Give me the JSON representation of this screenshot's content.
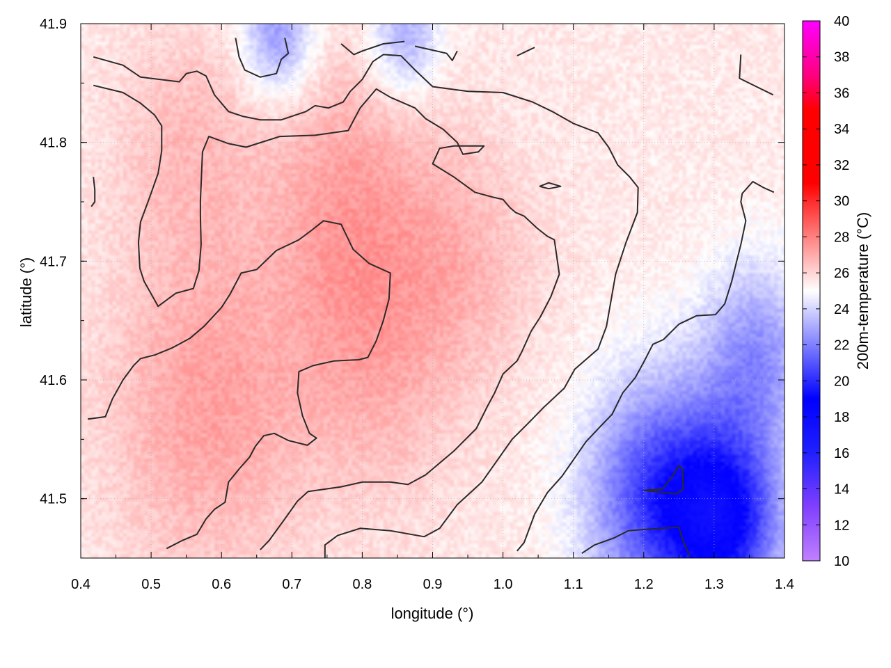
{
  "chart_data": {
    "type": "heatmap",
    "title": "",
    "xlabel": "longitude (°)",
    "ylabel": "latitude (°)",
    "colorbar_label": "200m-temperature (°C)",
    "xlim": [
      0.4,
      1.4
    ],
    "ylim": [
      41.45,
      41.9
    ],
    "x_ticks": [
      0.4,
      0.5,
      0.6,
      0.7,
      0.8,
      0.9,
      1.0,
      1.1,
      1.2,
      1.3,
      1.4
    ],
    "x_tick_labels": [
      "0.4",
      "0.5",
      "0.6",
      "0.7",
      "0.8",
      "0.9",
      "1.0",
      "1.1",
      "1.2",
      "1.3",
      "1.4"
    ],
    "y_ticks": [
      41.5,
      41.6,
      41.7,
      41.8,
      41.9
    ],
    "y_tick_labels": [
      "41.5",
      "41.6",
      "41.7",
      "41.8",
      "41.9"
    ],
    "colorbar_ticks": [
      10,
      12,
      14,
      16,
      18,
      20,
      22,
      24,
      26,
      28,
      30,
      32,
      34,
      36,
      38,
      40
    ],
    "colorbar_tick_labels": [
      "10",
      "12",
      "14",
      "16",
      "18",
      "20",
      "22",
      "24",
      "26",
      "28",
      "30",
      "32",
      "34",
      "36",
      "38",
      "40"
    ],
    "value_range": [
      10,
      40
    ],
    "grid": true,
    "colormap": [
      {
        "value": 10,
        "color": "#c080ff"
      },
      {
        "value": 13,
        "color": "#8040ff"
      },
      {
        "value": 16,
        "color": "#2020ff"
      },
      {
        "value": 19,
        "color": "#0000ff"
      },
      {
        "value": 22,
        "color": "#8080ff"
      },
      {
        "value": 25,
        "color": "#ffffff"
      },
      {
        "value": 28,
        "color": "#ff8080"
      },
      {
        "value": 31,
        "color": "#ff0000"
      },
      {
        "value": 35,
        "color": "#ff0000"
      },
      {
        "value": 37,
        "color": "#ff0080"
      },
      {
        "value": 40,
        "color": "#ff00ff"
      }
    ],
    "field": {
      "description_free": true,
      "base_value": 25.5,
      "hot_centers": [
        {
          "lon": 0.58,
          "lat": 41.58,
          "value": 27.2,
          "spread": 0.14
        },
        {
          "lon": 0.78,
          "lat": 41.76,
          "value": 27.0,
          "spread": 0.12
        },
        {
          "lon": 0.82,
          "lat": 41.62,
          "value": 26.8,
          "spread": 0.12
        },
        {
          "lon": 0.55,
          "lat": 41.8,
          "value": 26.5,
          "spread": 0.1
        },
        {
          "lon": 0.95,
          "lat": 41.7,
          "value": 26.5,
          "spread": 0.1
        }
      ],
      "cold_centers": [
        {
          "lon": 1.22,
          "lat": 41.5,
          "value": 20.5,
          "spread": 0.1
        },
        {
          "lon": 1.32,
          "lat": 41.48,
          "value": 20.0,
          "spread": 0.08
        },
        {
          "lon": 1.36,
          "lat": 41.62,
          "value": 22.5,
          "spread": 0.08
        },
        {
          "lon": 0.68,
          "lat": 41.89,
          "value": 22.5,
          "spread": 0.05
        },
        {
          "lon": 0.86,
          "lat": 41.89,
          "value": 23.0,
          "spread": 0.05
        }
      ]
    },
    "contours": [
      [
        [
          0.418,
          41.872
        ],
        [
          0.46,
          41.865
        ],
        [
          0.485,
          41.855
        ],
        [
          0.54,
          41.851
        ],
        [
          0.55,
          41.858
        ],
        [
          0.565,
          41.86
        ],
        [
          0.578,
          41.856
        ],
        [
          0.59,
          41.84
        ],
        [
          0.61,
          41.826
        ],
        [
          0.63,
          41.822
        ],
        [
          0.655,
          41.819
        ],
        [
          0.685,
          41.819
        ],
        [
          0.72,
          41.826
        ],
        [
          0.733,
          41.831
        ],
        [
          0.752,
          41.829
        ],
        [
          0.773,
          41.834
        ],
        [
          0.783,
          41.843
        ],
        [
          0.8,
          41.853
        ],
        [
          0.815,
          41.868
        ],
        [
          0.83,
          41.874
        ],
        [
          0.855,
          41.873
        ],
        [
          0.875,
          41.861
        ],
        [
          0.9,
          41.847
        ],
        [
          0.95,
          41.843
        ],
        [
          1.0,
          41.842
        ],
        [
          1.042,
          41.834
        ],
        [
          1.07,
          41.826
        ],
        [
          1.1,
          41.816
        ],
        [
          1.135,
          41.808
        ],
        [
          1.15,
          41.796
        ],
        [
          1.163,
          41.781
        ],
        [
          1.18,
          41.771
        ],
        [
          1.192,
          41.762
        ],
        [
          1.191,
          41.741
        ],
        [
          1.175,
          41.716
        ],
        [
          1.16,
          41.689
        ],
        [
          1.147,
          41.645
        ],
        [
          1.135,
          41.626
        ],
        [
          1.102,
          41.609
        ],
        [
          1.087,
          41.593
        ],
        [
          1.058,
          41.577
        ],
        [
          1.035,
          41.563
        ],
        [
          1.013,
          41.55
        ],
        [
          0.97,
          41.514
        ],
        [
          0.935,
          41.495
        ],
        [
          0.91,
          41.475
        ],
        [
          0.888,
          41.468
        ],
        [
          0.84,
          41.473
        ],
        [
          0.797,
          41.475
        ],
        [
          0.765,
          41.469
        ],
        [
          0.747,
          41.461
        ],
        [
          0.747,
          41.445
        ]
      ],
      [
        [
          0.418,
          41.848
        ],
        [
          0.46,
          41.842
        ],
        [
          0.485,
          41.833
        ],
        [
          0.505,
          41.823
        ],
        [
          0.515,
          41.814
        ],
        [
          0.515,
          41.793
        ],
        [
          0.51,
          41.774
        ],
        [
          0.498,
          41.754
        ],
        [
          0.485,
          41.733
        ],
        [
          0.482,
          41.716
        ],
        [
          0.484,
          41.694
        ],
        [
          0.49,
          41.683
        ],
        [
          0.51,
          41.662
        ],
        [
          0.535,
          41.673
        ],
        [
          0.56,
          41.677
        ],
        [
          0.568,
          41.692
        ],
        [
          0.571,
          41.714
        ],
        [
          0.57,
          41.737
        ],
        [
          0.57,
          41.751
        ],
        [
          0.573,
          41.792
        ],
        [
          0.582,
          41.805
        ],
        [
          0.61,
          41.799
        ],
        [
          0.635,
          41.796
        ],
        [
          0.683,
          41.805
        ],
        [
          0.733,
          41.806
        ],
        [
          0.78,
          41.81
        ],
        [
          0.797,
          41.829
        ],
        [
          0.82,
          41.845
        ],
        [
          0.84,
          41.838
        ],
        [
          0.875,
          41.829
        ],
        [
          0.89,
          41.82
        ],
        [
          0.915,
          41.811
        ],
        [
          0.935,
          41.8
        ],
        [
          0.943,
          41.79
        ],
        [
          0.965,
          41.792
        ],
        [
          0.973,
          41.797
        ],
        [
          0.93,
          41.797
        ],
        [
          0.91,
          41.795
        ],
        [
          0.9,
          41.782
        ],
        [
          0.93,
          41.771
        ],
        [
          0.96,
          41.758
        ],
        [
          0.985,
          41.754
        ],
        [
          1.0,
          41.752
        ],
        [
          1.01,
          41.745
        ],
        [
          1.018,
          41.741
        ],
        [
          1.03,
          41.738
        ],
        [
          1.048,
          41.728
        ],
        [
          1.063,
          41.721
        ],
        [
          1.073,
          41.718
        ],
        [
          1.08,
          41.689
        ],
        [
          1.068,
          41.67
        ],
        [
          1.053,
          41.653
        ],
        [
          1.04,
          41.641
        ],
        [
          1.027,
          41.624
        ],
        [
          1.02,
          41.616
        ],
        [
          1.0,
          41.605
        ],
        [
          0.988,
          41.589
        ],
        [
          0.978,
          41.578
        ],
        [
          0.962,
          41.559
        ],
        [
          0.93,
          41.54
        ],
        [
          0.89,
          41.52
        ],
        [
          0.865,
          41.512
        ],
        [
          0.84,
          41.514
        ],
        [
          0.8,
          41.514
        ],
        [
          0.77,
          41.51
        ],
        [
          0.723,
          41.506
        ],
        [
          0.708,
          41.498
        ],
        [
          0.69,
          41.483
        ],
        [
          0.668,
          41.465
        ],
        [
          0.655,
          41.457
        ]
      ],
      [
        [
          0.41,
          41.567
        ],
        [
          0.435,
          41.569
        ],
        [
          0.445,
          41.584
        ],
        [
          0.46,
          41.6
        ],
        [
          0.475,
          41.612
        ],
        [
          0.485,
          41.618
        ],
        [
          0.505,
          41.621
        ],
        [
          0.53,
          41.627
        ],
        [
          0.555,
          41.635
        ],
        [
          0.575,
          41.645
        ],
        [
          0.6,
          41.661
        ],
        [
          0.612,
          41.672
        ],
        [
          0.628,
          41.69
        ],
        [
          0.65,
          41.693
        ],
        [
          0.678,
          41.709
        ],
        [
          0.71,
          41.718
        ],
        [
          0.728,
          41.726
        ],
        [
          0.745,
          41.734
        ],
        [
          0.77,
          41.731
        ],
        [
          0.787,
          41.71
        ],
        [
          0.81,
          41.698
        ],
        [
          0.84,
          41.69
        ],
        [
          0.838,
          41.668
        ],
        [
          0.83,
          41.65
        ],
        [
          0.82,
          41.633
        ],
        [
          0.808,
          41.619
        ],
        [
          0.795,
          41.617
        ],
        [
          0.76,
          41.616
        ],
        [
          0.73,
          41.612
        ],
        [
          0.71,
          41.607
        ],
        [
          0.708,
          41.589
        ],
        [
          0.715,
          41.57
        ],
        [
          0.725,
          41.555
        ],
        [
          0.735,
          41.551
        ],
        [
          0.722,
          41.545
        ],
        [
          0.695,
          41.549
        ],
        [
          0.675,
          41.555
        ],
        [
          0.66,
          41.553
        ],
        [
          0.648,
          41.544
        ],
        [
          0.64,
          41.535
        ],
        [
          0.625,
          41.525
        ],
        [
          0.61,
          41.514
        ],
        [
          0.605,
          41.497
        ],
        [
          0.59,
          41.491
        ],
        [
          0.578,
          41.483
        ],
        [
          0.565,
          41.47
        ],
        [
          0.545,
          41.465
        ],
        [
          0.522,
          41.458
        ]
      ],
      [
        [
          0.62,
          41.888
        ],
        [
          0.625,
          41.872
        ],
        [
          0.633,
          41.861
        ],
        [
          0.655,
          41.855
        ],
        [
          0.678,
          41.858
        ],
        [
          0.685,
          41.87
        ],
        [
          0.695,
          41.875
        ],
        [
          0.69,
          41.888
        ]
      ],
      [
        [
          0.77,
          41.883
        ],
        [
          0.788,
          41.874
        ],
        [
          0.8,
          41.877
        ],
        [
          0.83,
          41.883
        ],
        [
          0.86,
          41.885
        ]
      ],
      [
        [
          0.875,
          41.881
        ],
        [
          0.92,
          41.875
        ],
        [
          0.928,
          41.869
        ],
        [
          0.935,
          41.877
        ]
      ],
      [
        [
          1.02,
          41.873
        ],
        [
          1.045,
          41.88
        ]
      ],
      [
        [
          1.338,
          41.874
        ],
        [
          1.336,
          41.854
        ],
        [
          1.36,
          41.847
        ],
        [
          1.384,
          41.84
        ]
      ],
      [
        [
          0.418,
          41.771
        ],
        [
          0.42,
          41.76
        ],
        [
          0.42,
          41.75
        ],
        [
          0.415,
          41.746
        ]
      ],
      [
        [
          1.02,
          41.456
        ],
        [
          1.03,
          41.463
        ],
        [
          1.045,
          41.487
        ],
        [
          1.063,
          41.505
        ],
        [
          1.084,
          41.519
        ],
        [
          1.104,
          41.536
        ],
        [
          1.118,
          41.548
        ],
        [
          1.137,
          41.56
        ],
        [
          1.155,
          41.571
        ],
        [
          1.17,
          41.589
        ],
        [
          1.188,
          41.602
        ],
        [
          1.2,
          41.615
        ],
        [
          1.213,
          41.63
        ],
        [
          1.228,
          41.634
        ],
        [
          1.25,
          41.647
        ],
        [
          1.275,
          41.654
        ],
        [
          1.302,
          41.655
        ],
        [
          1.315,
          41.664
        ],
        [
          1.325,
          41.683
        ],
        [
          1.332,
          41.7
        ],
        [
          1.338,
          41.714
        ],
        [
          1.345,
          41.734
        ],
        [
          1.338,
          41.75
        ],
        [
          1.34,
          41.757
        ],
        [
          1.355,
          41.767
        ],
        [
          1.37,
          41.762
        ],
        [
          1.385,
          41.758
        ]
      ],
      [
        [
          1.2,
          41.507
        ],
        [
          1.226,
          41.508
        ],
        [
          1.24,
          41.518
        ],
        [
          1.25,
          41.528
        ],
        [
          1.255,
          41.525
        ],
        [
          1.256,
          41.508
        ],
        [
          1.246,
          41.504
        ],
        [
          1.2,
          41.507
        ]
      ],
      [
        [
          1.112,
          41.454
        ],
        [
          1.13,
          41.461
        ],
        [
          1.158,
          41.467
        ],
        [
          1.178,
          41.473
        ],
        [
          1.2,
          41.474
        ],
        [
          1.25,
          41.476
        ],
        [
          1.255,
          41.466
        ],
        [
          1.265,
          41.452
        ]
      ],
      [
        [
          1.052,
          41.763
        ],
        [
          1.065,
          41.766
        ],
        [
          1.082,
          41.763
        ],
        [
          1.065,
          41.761
        ],
        [
          1.052,
          41.763
        ]
      ]
    ]
  }
}
